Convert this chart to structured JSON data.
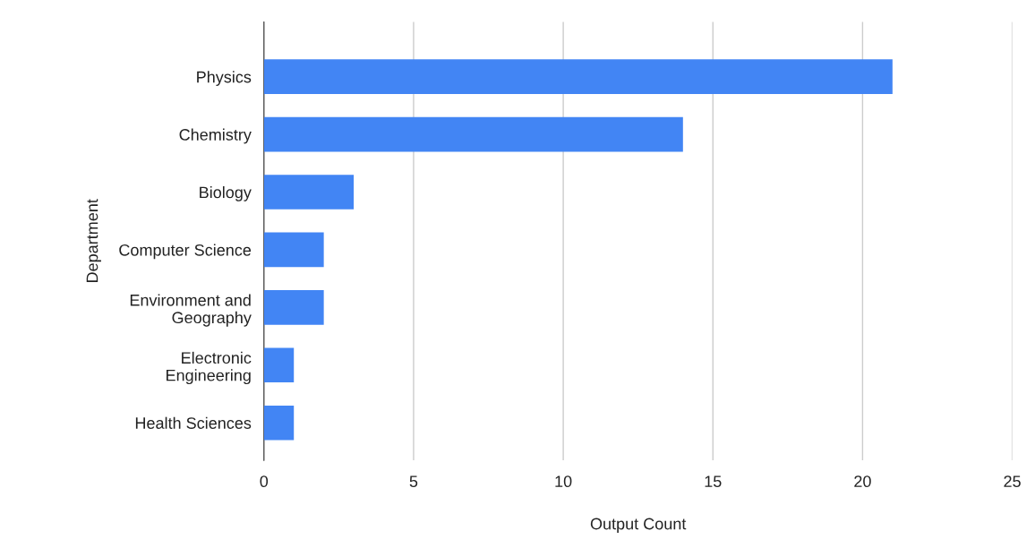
{
  "chart_data": {
    "type": "bar",
    "orientation": "horizontal",
    "xlabel": "Output Count",
    "ylabel": "Department",
    "categories": [
      "Physics",
      "Chemistry",
      "Biology",
      "Computer Science",
      "Environment and\nGeography",
      "Electronic\nEngineering",
      "Health Sciences"
    ],
    "values": [
      21,
      14,
      3,
      2,
      2,
      1,
      1
    ],
    "color": "#4285f4",
    "xlim": [
      0,
      25
    ],
    "xticks": [
      0,
      5,
      10,
      15,
      20,
      25
    ],
    "grid": "x"
  }
}
